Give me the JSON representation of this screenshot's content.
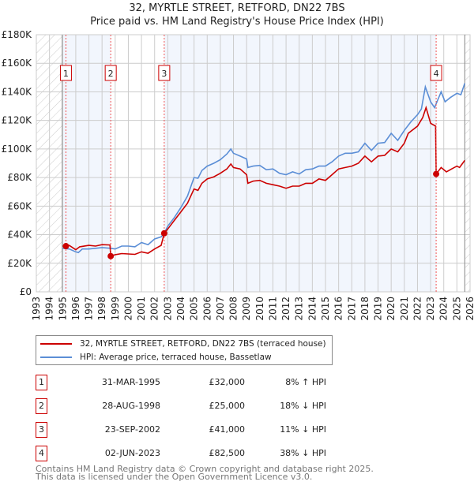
{
  "title": "32, MYRTLE STREET, RETFORD, DN22 7BS",
  "subtitle": "Price paid vs. HM Land Registry's House Price Index (HPI)",
  "chart_data": {
    "type": "line",
    "title": "32, MYRTLE STREET, RETFORD, DN22 7BS",
    "subtitle": "Price paid vs. HM Land Registry's House Price Index (HPI)",
    "xlim": [
      1993,
      2026
    ],
    "ylim": [
      0,
      180000
    ],
    "x_ticks": [
      "1993",
      "1994",
      "1995",
      "1996",
      "1997",
      "1998",
      "1999",
      "2000",
      "2001",
      "2002",
      "2003",
      "2004",
      "2005",
      "2006",
      "2007",
      "2008",
      "2009",
      "2010",
      "2011",
      "2012",
      "2013",
      "2014",
      "2015",
      "2016",
      "2017",
      "2018",
      "2019",
      "2020",
      "2021",
      "2022",
      "2023",
      "2024",
      "2025",
      "2026"
    ],
    "y_ticks": [
      {
        "v": 0,
        "label": "£0"
      },
      {
        "v": 20000,
        "label": "£20K"
      },
      {
        "v": 40000,
        "label": "£40K"
      },
      {
        "v": 60000,
        "label": "£60K"
      },
      {
        "v": 80000,
        "label": "£80K"
      },
      {
        "v": 100000,
        "label": "£100K"
      },
      {
        "v": 120000,
        "label": "£120K"
      },
      {
        "v": 140000,
        "label": "£140K"
      },
      {
        "v": 160000,
        "label": "£160K"
      },
      {
        "v": 180000,
        "label": "£180K"
      }
    ],
    "grid": true,
    "data_range": [
      1995.0,
      2025.6
    ],
    "series": [
      {
        "name": "32, MYRTLE STREET, RETFORD, DN22 7BS (terraced house)",
        "color": "#cc0000",
        "points": [
          [
            1995.0,
            32000
          ],
          [
            1995.25,
            32000
          ],
          [
            1995.5,
            32500
          ],
          [
            1996.0,
            29500
          ],
          [
            1996.3,
            31500
          ],
          [
            1997,
            32500
          ],
          [
            1997.5,
            32000
          ],
          [
            1998,
            33000
          ],
          [
            1998.6,
            32800
          ],
          [
            1998.66,
            25000
          ],
          [
            1999,
            26000
          ],
          [
            1999.5,
            26800
          ],
          [
            2000,
            26500
          ],
          [
            2000.5,
            26200
          ],
          [
            2001,
            28000
          ],
          [
            2001.5,
            27000
          ],
          [
            2002,
            30000
          ],
          [
            2002.5,
            32500
          ],
          [
            2002.73,
            41000
          ],
          [
            2003,
            44000
          ],
          [
            2003.5,
            50000
          ],
          [
            2004,
            56000
          ],
          [
            2004.5,
            62000
          ],
          [
            2005,
            72000
          ],
          [
            2005.3,
            71000
          ],
          [
            2005.6,
            76000
          ],
          [
            2006,
            79000
          ],
          [
            2006.5,
            80500
          ],
          [
            2007,
            83000
          ],
          [
            2007.5,
            86000
          ],
          [
            2007.8,
            89500
          ],
          [
            2008,
            87000
          ],
          [
            2008.5,
            86000
          ],
          [
            2009,
            82000
          ],
          [
            2009.1,
            76000
          ],
          [
            2009.5,
            77500
          ],
          [
            2010,
            78000
          ],
          [
            2010.5,
            76000
          ],
          [
            2011,
            75000
          ],
          [
            2011.5,
            74000
          ],
          [
            2012,
            72500
          ],
          [
            2012.5,
            74000
          ],
          [
            2013,
            74000
          ],
          [
            2013.5,
            76000
          ],
          [
            2014,
            76000
          ],
          [
            2014.5,
            79000
          ],
          [
            2015,
            78000
          ],
          [
            2015.5,
            82000
          ],
          [
            2016,
            86000
          ],
          [
            2016.5,
            87000
          ],
          [
            2017,
            88000
          ],
          [
            2017.5,
            90000
          ],
          [
            2018,
            95000
          ],
          [
            2018.5,
            91000
          ],
          [
            2019,
            95000
          ],
          [
            2019.5,
            95500
          ],
          [
            2020,
            100000
          ],
          [
            2020.5,
            98000
          ],
          [
            2021,
            104000
          ],
          [
            2021.3,
            111000
          ],
          [
            2022,
            116000
          ],
          [
            2022.4,
            122000
          ],
          [
            2022.65,
            129000
          ],
          [
            2023.0,
            118000
          ],
          [
            2023.38,
            116000
          ],
          [
            2023.42,
            82500
          ],
          [
            2023.8,
            87000
          ],
          [
            2024.2,
            84000
          ],
          [
            2024.6,
            86000
          ],
          [
            2025.0,
            88000
          ],
          [
            2025.2,
            87000
          ],
          [
            2025.6,
            92000
          ]
        ]
      },
      {
        "name": "HPI: Average price, terraced house, Bassetlaw",
        "color": "#5b8ed6",
        "points": [
          [
            1995.0,
            30500
          ],
          [
            1995.5,
            30000
          ],
          [
            1996.0,
            28000
          ],
          [
            1996.2,
            27500
          ],
          [
            1996.5,
            30000
          ],
          [
            1997,
            30000
          ],
          [
            1997.5,
            30500
          ],
          [
            1998,
            31000
          ],
          [
            1998.66,
            30500
          ],
          [
            1999,
            30000
          ],
          [
            1999.5,
            32000
          ],
          [
            2000,
            32000
          ],
          [
            2000.5,
            31500
          ],
          [
            2001,
            34500
          ],
          [
            2001.5,
            33000
          ],
          [
            2002,
            37000
          ],
          [
            2002.5,
            38500
          ],
          [
            2002.73,
            41000
          ],
          [
            2003,
            46000
          ],
          [
            2003.5,
            52000
          ],
          [
            2004,
            59000
          ],
          [
            2004.5,
            67000
          ],
          [
            2005,
            80000
          ],
          [
            2005.3,
            79500
          ],
          [
            2005.6,
            85000
          ],
          [
            2006,
            88000
          ],
          [
            2006.5,
            90000
          ],
          [
            2007,
            92500
          ],
          [
            2007.5,
            96500
          ],
          [
            2007.8,
            100000
          ],
          [
            2008,
            97000
          ],
          [
            2008.5,
            95000
          ],
          [
            2009,
            93000
          ],
          [
            2009.1,
            87000
          ],
          [
            2009.5,
            88000
          ],
          [
            2010,
            88500
          ],
          [
            2010.5,
            85500
          ],
          [
            2011,
            86000
          ],
          [
            2011.5,
            83000
          ],
          [
            2012,
            82000
          ],
          [
            2012.5,
            84000
          ],
          [
            2013,
            82500
          ],
          [
            2013.5,
            85500
          ],
          [
            2014,
            86000
          ],
          [
            2014.5,
            88000
          ],
          [
            2015,
            88000
          ],
          [
            2015.5,
            91000
          ],
          [
            2016,
            95000
          ],
          [
            2016.5,
            97000
          ],
          [
            2017,
            97000
          ],
          [
            2017.5,
            98000
          ],
          [
            2018,
            104000
          ],
          [
            2018.5,
            99000
          ],
          [
            2019,
            104000
          ],
          [
            2019.5,
            104500
          ],
          [
            2020,
            111000
          ],
          [
            2020.5,
            106000
          ],
          [
            2021,
            113000
          ],
          [
            2021.5,
            119000
          ],
          [
            2022,
            124000
          ],
          [
            2022.3,
            128000
          ],
          [
            2022.6,
            143500
          ],
          [
            2023.0,
            133000
          ],
          [
            2023.3,
            129000
          ],
          [
            2023.8,
            140000
          ],
          [
            2024.1,
            133000
          ],
          [
            2024.5,
            136000
          ],
          [
            2025.0,
            139000
          ],
          [
            2025.3,
            138000
          ],
          [
            2025.6,
            146000
          ]
        ]
      }
    ],
    "sales": [
      {
        "label": "1",
        "x": 1995.25,
        "price": 32000
      },
      {
        "label": "2",
        "x": 1998.66,
        "price": 25000
      },
      {
        "label": "3",
        "x": 2002.73,
        "price": 41000
      },
      {
        "label": "4",
        "x": 2023.42,
        "price": 82500
      }
    ]
  },
  "legend": {
    "property": "32, MYRTLE STREET, RETFORD, DN22 7BS (terraced house)",
    "hpi": "HPI: Average price, terraced house, Bassetlaw"
  },
  "transactions": [
    {
      "num": "1",
      "date": "31-MAR-1995",
      "price": "£32,000",
      "hpi": "8% ↑ HPI"
    },
    {
      "num": "2",
      "date": "28-AUG-1998",
      "price": "£25,000",
      "hpi": "18% ↓ HPI"
    },
    {
      "num": "3",
      "date": "23-SEP-2002",
      "price": "£41,000",
      "hpi": "11% ↓ HPI"
    },
    {
      "num": "4",
      "date": "02-JUN-2023",
      "price": "£82,500",
      "hpi": "38% ↓ HPI"
    }
  ],
  "footer": {
    "line1": "Contains HM Land Registry data © Crown copyright and database right 2025.",
    "line2": "This data is licensed under the Open Government Licence v3.0."
  }
}
